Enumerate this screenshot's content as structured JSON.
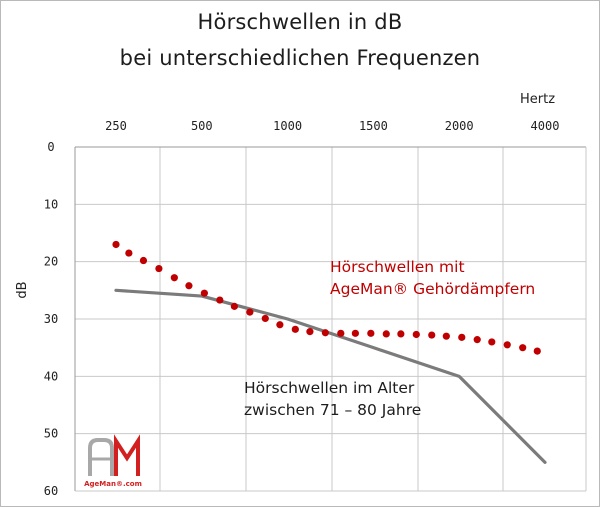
{
  "chart_data": {
    "type": "line",
    "title": "Hörschwellen in dB",
    "subtitle": "bei unterschiedlichen Frequenzen",
    "xlabel": "Hertz",
    "ylabel": "dB",
    "x_ticks": [
      "250",
      "500",
      "1000",
      "1500",
      "2000",
      "4000"
    ],
    "y_ticks": [
      "0",
      "10",
      "20",
      "30",
      "40",
      "50",
      "60"
    ],
    "ylim": [
      0,
      60
    ],
    "y_inverted": true,
    "grid": true,
    "series": [
      {
        "name": "Hörschwellen im Alter zwischen 71 – 80 Jahre",
        "style": "solid-line",
        "color": "#7b7b7b",
        "points": [
          {
            "x": 0,
            "y": 25
          },
          {
            "x": 1,
            "y": 26
          },
          {
            "x": 2,
            "y": 30
          },
          {
            "x": 3,
            "y": 35
          },
          {
            "x": 4,
            "y": 40
          },
          {
            "x": 5,
            "y": 55
          }
        ]
      },
      {
        "name": "Hörschwellen mit AgeMan® Gehördämpfern",
        "style": "dotted",
        "color": "#c00000",
        "points": [
          {
            "x": 0.0,
            "y": 17.0
          },
          {
            "x": 0.15,
            "y": 18.5
          },
          {
            "x": 0.32,
            "y": 19.8
          },
          {
            "x": 0.5,
            "y": 21.2
          },
          {
            "x": 0.68,
            "y": 22.8
          },
          {
            "x": 0.85,
            "y": 24.2
          },
          {
            "x": 1.03,
            "y": 25.5
          },
          {
            "x": 1.21,
            "y": 26.7
          },
          {
            "x": 1.38,
            "y": 27.8
          },
          {
            "x": 1.56,
            "y": 28.8
          },
          {
            "x": 1.74,
            "y": 29.9
          },
          {
            "x": 1.91,
            "y": 31.0
          },
          {
            "x": 2.09,
            "y": 31.8
          },
          {
            "x": 2.26,
            "y": 32.2
          },
          {
            "x": 2.44,
            "y": 32.4
          },
          {
            "x": 2.62,
            "y": 32.5
          },
          {
            "x": 2.79,
            "y": 32.5
          },
          {
            "x": 2.97,
            "y": 32.5
          },
          {
            "x": 3.15,
            "y": 32.6
          },
          {
            "x": 3.32,
            "y": 32.6
          },
          {
            "x": 3.5,
            "y": 32.7
          },
          {
            "x": 3.68,
            "y": 32.8
          },
          {
            "x": 3.85,
            "y": 33.0
          },
          {
            "x": 4.03,
            "y": 33.2
          },
          {
            "x": 4.21,
            "y": 33.6
          },
          {
            "x": 4.38,
            "y": 34.0
          },
          {
            "x": 4.56,
            "y": 34.5
          },
          {
            "x": 4.74,
            "y": 35.0
          },
          {
            "x": 4.91,
            "y": 35.6
          }
        ]
      }
    ],
    "annotations": [
      {
        "key": "ageman",
        "lines": [
          "Hörschwellen mit",
          "AgeMan® Gehördämpfern"
        ],
        "color": "#c00000"
      },
      {
        "key": "alter",
        "lines": [
          "Hörschwellen im Alter",
          "zwischen 71 – 80 Jahre"
        ],
        "color": "#1d1d1d"
      }
    ]
  },
  "logo": {
    "letters": "AM",
    "caption": "AgeMan®.com",
    "colors": {
      "a": "#a8a8a8",
      "m": "#d21f1f"
    }
  },
  "colors": {
    "grid": "#c9c9c9",
    "axis": "#9a9a9a",
    "gray_line": "#7b7b7b",
    "red_dots": "#c00000"
  }
}
